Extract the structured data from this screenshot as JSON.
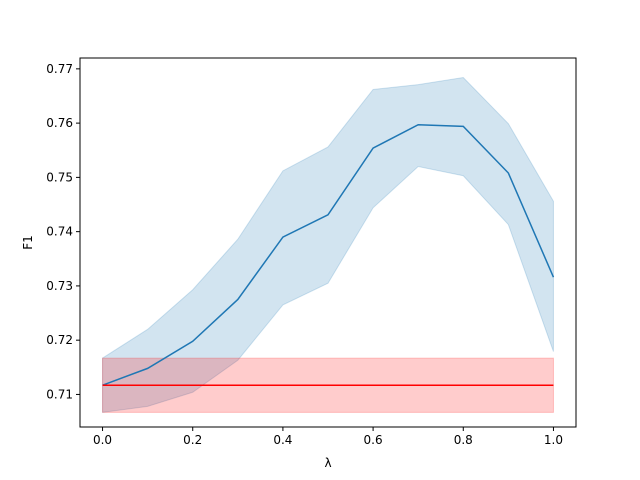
{
  "chart_data": {
    "type": "line",
    "xlabel": "λ",
    "ylabel": "F1",
    "xlim": [
      -0.05,
      1.05
    ],
    "ylim": [
      0.704,
      0.772
    ],
    "xticks": [
      0.0,
      0.2,
      0.4,
      0.6,
      0.8,
      1.0
    ],
    "xtick_labels": [
      "0.0",
      "0.2",
      "0.4",
      "0.6",
      "0.8",
      "1.0"
    ],
    "yticks": [
      0.71,
      0.72,
      0.73,
      0.74,
      0.75,
      0.76,
      0.77
    ],
    "ytick_labels": [
      "0.71",
      "0.72",
      "0.73",
      "0.74",
      "0.75",
      "0.76",
      "0.77"
    ],
    "grid": false,
    "series": [
      {
        "color": "#1f77b4",
        "band_color": "#1f77b4",
        "x": [
          0.0,
          0.1,
          0.2,
          0.3,
          0.4,
          0.5,
          0.6,
          0.7,
          0.8,
          0.9,
          1.0
        ],
        "y": [
          0.7117,
          0.7148,
          0.7198,
          0.7275,
          0.739,
          0.7431,
          0.7554,
          0.7597,
          0.7594,
          0.7508,
          0.7316
        ],
        "lower": [
          0.7067,
          0.7078,
          0.7104,
          0.7163,
          0.7265,
          0.7305,
          0.7444,
          0.752,
          0.7503,
          0.7413,
          0.7179
        ],
        "upper": [
          0.7167,
          0.722,
          0.7293,
          0.7386,
          0.7512,
          0.7556,
          0.7662,
          0.7671,
          0.7684,
          0.7599,
          0.7456
        ]
      },
      {
        "color": "#ff0000",
        "band_color": "#ff0000",
        "x": [
          0.0,
          1.0
        ],
        "y": [
          0.7117,
          0.7117
        ],
        "lower": [
          0.7067,
          0.7067
        ],
        "upper": [
          0.7167,
          0.7167
        ]
      }
    ]
  }
}
